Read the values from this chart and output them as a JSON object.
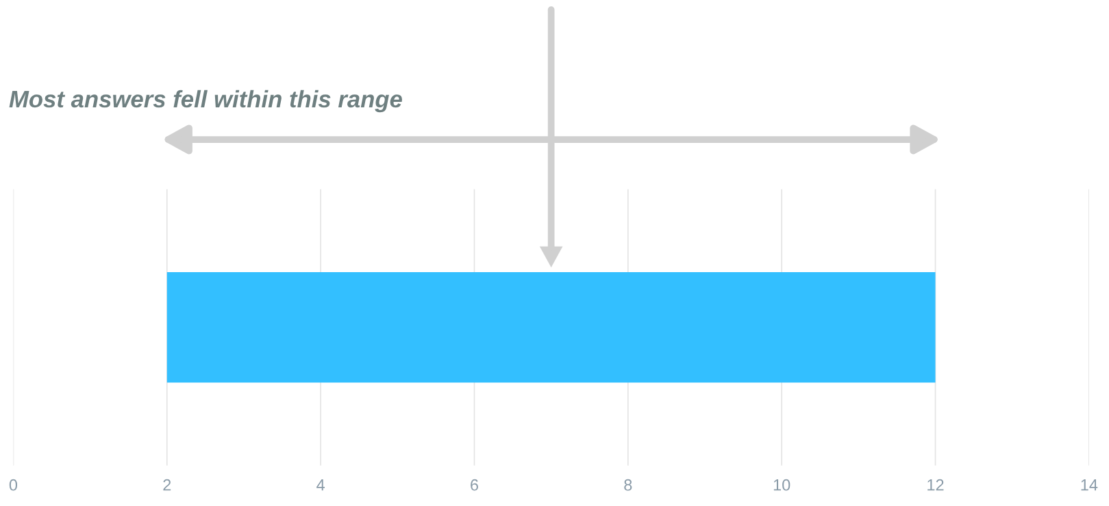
{
  "chart_data": {
    "type": "bar",
    "orientation": "horizontal",
    "categories": [
      null
    ],
    "base": [
      2
    ],
    "values": [
      10
    ],
    "color": "#33bfff",
    "xlim": [
      0,
      14
    ],
    "xticks": [
      0,
      2,
      4,
      6,
      8,
      10,
      12,
      14
    ],
    "grid": "x",
    "ref_lines": [
      {
        "axis": "x",
        "value": 7,
        "color": "#d0d0d0"
      }
    ],
    "annotations": [
      "Most answers fell within this range"
    ]
  }
}
